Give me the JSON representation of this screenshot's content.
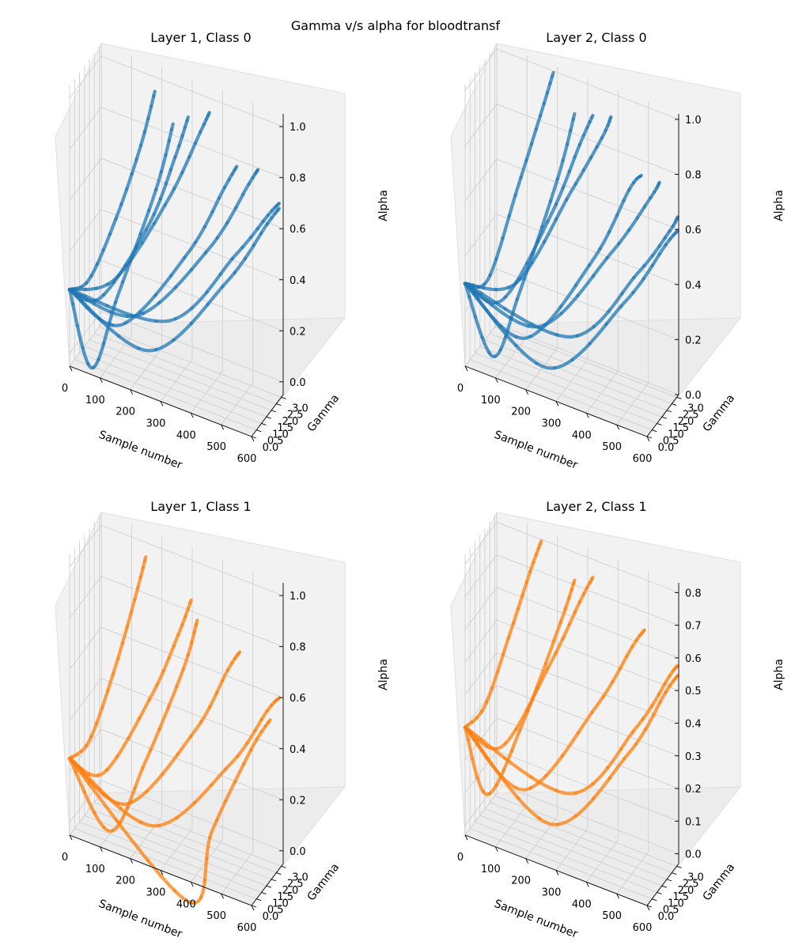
{
  "figure": {
    "suptitle": "Gamma v/s alpha for bloodtransf"
  },
  "chart_data": [
    {
      "type": "scatter",
      "projection": "3d",
      "title": "Layer 1, Class 0",
      "xlabel": "Sample number",
      "ylabel": "Gamma",
      "zlabel": "Alpha",
      "x_ticks": [
        0,
        100,
        200,
        300,
        400,
        500,
        600
      ],
      "y_ticks": [
        0.0,
        0.5,
        1.0,
        1.5,
        2.0,
        2.5,
        3.0
      ],
      "z_ticks": [
        0.0,
        0.2,
        0.4,
        0.6,
        0.8,
        1.0
      ],
      "x_tick_labels": [
        "0",
        "100",
        "200",
        "300",
        "400",
        "500",
        "600"
      ],
      "y_tick_labels": [
        "0.0",
        "0.5",
        "1.0",
        "1.5",
        "2.0",
        "2.5",
        "3.0"
      ],
      "z_tick_labels": [
        "0.0",
        "0.2",
        "0.4",
        "0.6",
        "0.8",
        "1.0"
      ],
      "xlim": [
        0,
        600
      ],
      "ylim": [
        0,
        3.2
      ],
      "zlim": [
        -0.05,
        1.05
      ],
      "color": "#1f77b4",
      "grid": true,
      "series": [
        {
          "values": [
            [
              0,
              0,
              0.25
            ],
            [
              40,
              0.8,
              0.27
            ],
            [
              100,
              1.8,
              0.5
            ],
            [
              150,
              2.6,
              0.75
            ],
            [
              180,
              3.1,
              0.95
            ]
          ]
        },
        {
          "values": [
            [
              0,
              0,
              0.25
            ],
            [
              80,
              0.7,
              0.22
            ],
            [
              200,
              1.9,
              0.5
            ],
            [
              260,
              2.7,
              0.75
            ],
            [
              290,
              3.1,
              0.9
            ]
          ]
        },
        {
          "values": [
            [
              0,
              0,
              0.25
            ],
            [
              150,
              0.6,
              0.15
            ],
            [
              330,
              1.9,
              0.45
            ],
            [
              420,
              2.8,
              0.7
            ],
            [
              450,
              3.1,
              0.78
            ]
          ]
        },
        {
          "values": [
            [
              0,
              0,
              0.25
            ],
            [
              250,
              0.5,
              0.1
            ],
            [
              460,
              1.8,
              0.4
            ],
            [
              560,
              2.8,
              0.62
            ],
            [
              590,
              3.1,
              0.68
            ]
          ]
        },
        {
          "values": [
            [
              0,
              0,
              0.25
            ],
            [
              120,
              0.9,
              0.3
            ],
            [
              260,
              2.0,
              0.62
            ],
            [
              340,
              2.8,
              0.88
            ],
            [
              360,
              3.1,
              0.95
            ]
          ]
        },
        {
          "values": [
            [
              0,
              0,
              0.25
            ],
            [
              200,
              0.8,
              0.2
            ],
            [
              400,
              1.9,
              0.5
            ],
            [
              500,
              2.8,
              0.75
            ],
            [
              520,
              3.1,
              0.8
            ]
          ]
        },
        {
          "values": [
            [
              0,
              0,
              0.25
            ],
            [
              60,
              0.4,
              -0.05
            ],
            [
              110,
              1.5,
              0.2
            ],
            [
              200,
              2.6,
              0.6
            ],
            [
              240,
              3.1,
              0.85
            ]
          ]
        },
        {
          "values": [
            [
              0,
              0,
              0.25
            ],
            [
              300,
              0.9,
              0.22
            ],
            [
              480,
              2.1,
              0.5
            ],
            [
              560,
              2.9,
              0.65
            ],
            [
              590,
              3.1,
              0.7
            ]
          ]
        }
      ]
    },
    {
      "type": "scatter",
      "projection": "3d",
      "title": "Layer 2, Class 0",
      "xlabel": "Sample number",
      "ylabel": "Gamma",
      "zlabel": "Alpha",
      "x_ticks": [
        0,
        100,
        200,
        300,
        400,
        500,
        600
      ],
      "y_ticks": [
        0.0,
        0.5,
        1.0,
        1.5,
        2.0,
        2.5,
        3.0
      ],
      "z_ticks": [
        0.0,
        0.2,
        0.4,
        0.6,
        0.8,
        1.0
      ],
      "x_tick_labels": [
        "0",
        "100",
        "200",
        "300",
        "400",
        "500",
        "600"
      ],
      "y_tick_labels": [
        "0.0",
        "0.5",
        "1.0",
        "1.5",
        "2.0",
        "2.5",
        "3.0"
      ],
      "z_tick_labels": [
        "0.0",
        "0.2",
        "0.4",
        "0.6",
        "0.8",
        "1.0"
      ],
      "xlim": [
        0,
        600
      ],
      "ylim": [
        0,
        3.2
      ],
      "zlim": [
        0,
        1.02
      ],
      "color": "#1f77b4",
      "grid": true,
      "series": [
        {
          "values": [
            [
              0,
              0,
              0.3
            ],
            [
              50,
              0.8,
              0.3
            ],
            [
              110,
              1.9,
              0.6
            ],
            [
              160,
              2.7,
              0.85
            ],
            [
              190,
              3.1,
              1.0
            ]
          ]
        },
        {
          "values": [
            [
              0,
              0,
              0.3
            ],
            [
              100,
              0.7,
              0.25
            ],
            [
              220,
              1.9,
              0.55
            ],
            [
              290,
              2.7,
              0.8
            ],
            [
              320,
              3.1,
              0.9
            ]
          ]
        },
        {
          "values": [
            [
              0,
              0,
              0.3
            ],
            [
              180,
              0.6,
              0.15
            ],
            [
              360,
              1.9,
              0.45
            ],
            [
              450,
              2.8,
              0.7
            ],
            [
              480,
              3.1,
              0.75
            ]
          ]
        },
        {
          "values": [
            [
              0,
              0,
              0.3
            ],
            [
              260,
              0.5,
              0.08
            ],
            [
              470,
              1.8,
              0.35
            ],
            [
              570,
              2.8,
              0.55
            ],
            [
              600,
              3.1,
              0.6
            ]
          ]
        },
        {
          "values": [
            [
              0,
              0,
              0.3
            ],
            [
              140,
              0.9,
              0.32
            ],
            [
              280,
              2.0,
              0.65
            ],
            [
              360,
              2.8,
              0.85
            ],
            [
              380,
              3.1,
              0.92
            ]
          ]
        },
        {
          "values": [
            [
              0,
              0,
              0.3
            ],
            [
              220,
              0.8,
              0.2
            ],
            [
              420,
              1.9,
              0.5
            ],
            [
              520,
              2.8,
              0.7
            ],
            [
              540,
              3.1,
              0.75
            ]
          ]
        },
        {
          "values": [
            [
              0,
              0,
              0.3
            ],
            [
              80,
              0.4,
              0.05
            ],
            [
              130,
              1.5,
              0.25
            ],
            [
              220,
              2.6,
              0.65
            ],
            [
              260,
              3.1,
              0.88
            ]
          ]
        },
        {
          "values": [
            [
              0,
              0,
              0.3
            ],
            [
              320,
              0.9,
              0.2
            ],
            [
              500,
              2.1,
              0.45
            ],
            [
              580,
              2.9,
              0.6
            ],
            [
              600,
              3.1,
              0.65
            ]
          ]
        }
      ]
    },
    {
      "type": "scatter",
      "projection": "3d",
      "title": "Layer 1, Class 1",
      "xlabel": "Sample number",
      "ylabel": "Gamma",
      "zlabel": "Alpha",
      "x_ticks": [
        0,
        100,
        200,
        300,
        400,
        500,
        600
      ],
      "y_ticks": [
        0.0,
        0.5,
        1.0,
        1.5,
        2.0,
        2.5,
        3.0
      ],
      "z_ticks": [
        0.0,
        0.2,
        0.4,
        0.6,
        0.8,
        1.0
      ],
      "x_tick_labels": [
        "0",
        "100",
        "200",
        "300",
        "400",
        "500",
        "600"
      ],
      "y_tick_labels": [
        "0.0",
        "0.5",
        "1.0",
        "1.5",
        "2.0",
        "2.5",
        "3.0"
      ],
      "z_tick_labels": [
        "0.0",
        "0.2",
        "0.4",
        "0.6",
        "0.8",
        "1.0"
      ],
      "xlim": [
        0,
        600
      ],
      "ylim": [
        0,
        3.2
      ],
      "zlim": [
        -0.05,
        1.05
      ],
      "color": "#ff7f0e",
      "grid": true,
      "series": [
        {
          "values": [
            [
              0,
              0,
              0.25
            ],
            [
              40,
              0.8,
              0.3
            ],
            [
              90,
              1.8,
              0.55
            ],
            [
              130,
              2.6,
              0.8
            ],
            [
              150,
              3.1,
              0.95
            ]
          ]
        },
        {
          "values": [
            [
              0,
              0,
              0.25
            ],
            [
              90,
              0.7,
              0.2
            ],
            [
              210,
              1.9,
              0.5
            ],
            [
              270,
              2.7,
              0.72
            ],
            [
              300,
              3.1,
              0.85
            ]
          ]
        },
        {
          "values": [
            [
              0,
              0,
              0.25
            ],
            [
              170,
              0.6,
              0.12
            ],
            [
              350,
              1.9,
              0.42
            ],
            [
              430,
              2.8,
              0.65
            ],
            [
              460,
              3.1,
              0.72
            ]
          ]
        },
        {
          "values": [
            [
              0,
              0,
              0.25
            ],
            [
              260,
              0.5,
              0.08
            ],
            [
              470,
              1.8,
              0.35
            ],
            [
              560,
              2.8,
              0.55
            ],
            [
              590,
              3.1,
              0.6
            ]
          ]
        },
        {
          "values": [
            [
              0,
              0,
              0.25
            ],
            [
              120,
              0.4,
              0.0
            ],
            [
              200,
              1.5,
              0.25
            ],
            [
              290,
              2.6,
              0.6
            ],
            [
              320,
              3.1,
              0.78
            ]
          ]
        },
        {
          "values": [
            [
              0,
              0,
              0.25
            ],
            [
              380,
              0.3,
              -0.15
            ],
            [
              430,
              1.2,
              0.1
            ],
            [
              520,
              2.4,
              0.4
            ],
            [
              560,
              3.1,
              0.5
            ]
          ]
        }
      ]
    },
    {
      "type": "scatter",
      "projection": "3d",
      "title": "Layer 2, Class 1",
      "xlabel": "Sample number",
      "ylabel": "Gamma",
      "zlabel": "Alpha",
      "x_ticks": [
        0,
        100,
        200,
        300,
        400,
        500,
        600
      ],
      "y_ticks": [
        0.0,
        0.5,
        1.0,
        1.5,
        2.0,
        2.5,
        3.0
      ],
      "z_ticks": [
        0.0,
        0.1,
        0.2,
        0.3,
        0.4,
        0.5,
        0.6,
        0.7,
        0.8
      ],
      "x_tick_labels": [
        "0",
        "100",
        "200",
        "300",
        "400",
        "500",
        "600"
      ],
      "y_tick_labels": [
        "0.0",
        "0.5",
        "1.0",
        "1.5",
        "2.0",
        "2.5",
        "3.0"
      ],
      "z_tick_labels": [
        "0.0",
        "0.1",
        "0.2",
        "0.3",
        "0.4",
        "0.5",
        "0.6",
        "0.7",
        "0.8"
      ],
      "xlim": [
        0,
        600
      ],
      "ylim": [
        0,
        3.2
      ],
      "zlim": [
        -0.03,
        0.83
      ],
      "color": "#ff7f0e",
      "grid": true,
      "series": [
        {
          "values": [
            [
              0,
              0,
              0.3
            ],
            [
              40,
              0.8,
              0.35
            ],
            [
              90,
              1.8,
              0.55
            ],
            [
              130,
              2.6,
              0.72
            ],
            [
              150,
              3.1,
              0.8
            ]
          ]
        },
        {
          "values": [
            [
              0,
              0,
              0.3
            ],
            [
              100,
              0.7,
              0.25
            ],
            [
              220,
              1.9,
              0.5
            ],
            [
              290,
              2.7,
              0.68
            ],
            [
              320,
              3.1,
              0.75
            ]
          ]
        },
        {
          "values": [
            [
              0,
              0,
              0.3
            ],
            [
              180,
              0.6,
              0.15
            ],
            [
              370,
              1.9,
              0.42
            ],
            [
              460,
              2.8,
              0.6
            ],
            [
              490,
              3.1,
              0.65
            ]
          ]
        },
        {
          "values": [
            [
              0,
              0,
              0.3
            ],
            [
              270,
              0.5,
              0.08
            ],
            [
              480,
              1.8,
              0.32
            ],
            [
              570,
              2.8,
              0.5
            ],
            [
              600,
              3.1,
              0.55
            ]
          ]
        },
        {
          "values": [
            [
              0,
              0,
              0.3
            ],
            [
              60,
              0.4,
              0.1
            ],
            [
              140,
              1.5,
              0.3
            ],
            [
              230,
              2.6,
              0.6
            ],
            [
              260,
              3.1,
              0.72
            ]
          ]
        },
        {
          "values": [
            [
              0,
              0,
              0.3
            ],
            [
              320,
              0.8,
              0.18
            ],
            [
              500,
              2.0,
              0.4
            ],
            [
              580,
              2.9,
              0.55
            ],
            [
              600,
              3.1,
              0.58
            ]
          ]
        }
      ]
    }
  ]
}
